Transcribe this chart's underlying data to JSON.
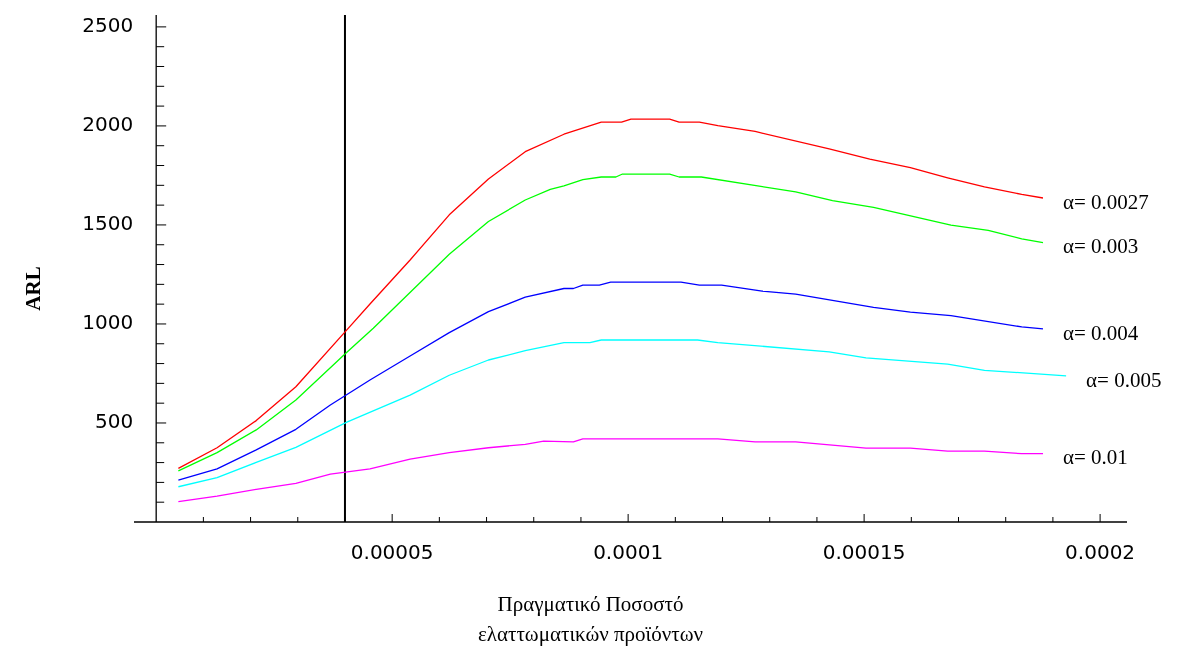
{
  "chart_data": {
    "type": "line",
    "xlabel": "Πραγματικό Ποσοστό\nελαττωματικών προϊόντων",
    "ylabel": "ARL",
    "xlim": [
      -4.7e-06,
      0.0002057
    ],
    "ylim": [
      0,
      2560
    ],
    "xticks": [
      {
        "value": 1e-05,
        "label": null
      },
      {
        "value": 2e-05,
        "label": null
      },
      {
        "value": 3e-05,
        "label": null
      },
      {
        "value": 4e-05,
        "label": null
      },
      {
        "value": 5e-05,
        "label": "0.00005"
      },
      {
        "value": 6e-05,
        "label": null
      },
      {
        "value": 7e-05,
        "label": null
      },
      {
        "value": 8e-05,
        "label": null
      },
      {
        "value": 9e-05,
        "label": null
      },
      {
        "value": 0.0001,
        "label": "0.0001"
      },
      {
        "value": 0.00011,
        "label": null
      },
      {
        "value": 0.00012,
        "label": null
      },
      {
        "value": 0.00013,
        "label": null
      },
      {
        "value": 0.00014,
        "label": null
      },
      {
        "value": 0.00015,
        "label": "0.00015"
      },
      {
        "value": 0.00016,
        "label": null
      },
      {
        "value": 0.00017,
        "label": null
      },
      {
        "value": 0.00018,
        "label": null
      },
      {
        "value": 0.00019,
        "label": null
      },
      {
        "value": 0.0002,
        "label": "0.0002"
      }
    ],
    "ref_lines": [
      {
        "axis": "x",
        "value": 4e-05,
        "color": "#000000"
      }
    ],
    "yticks": [
      {
        "value": 100,
        "label": null
      },
      {
        "value": 200,
        "label": null
      },
      {
        "value": 300,
        "label": null
      },
      {
        "value": 400,
        "label": null
      },
      500,
      {
        "value": 600,
        "label": null
      },
      {
        "value": 700,
        "label": null
      },
      {
        "value": 800,
        "label": null
      },
      {
        "value": 900,
        "label": null
      },
      1000,
      {
        "value": 1100,
        "label": null
      },
      {
        "value": 1200,
        "label": null
      },
      {
        "value": 1300,
        "label": null
      },
      {
        "value": 1400,
        "label": null
      },
      1500,
      {
        "value": 1600,
        "label": null
      },
      {
        "value": 1700,
        "label": null
      },
      {
        "value": 1800,
        "label": null
      },
      {
        "value": 1900,
        "label": null
      },
      2000,
      {
        "value": 2100,
        "label": null
      },
      {
        "value": 2200,
        "label": null
      },
      {
        "value": 2300,
        "label": null
      },
      {
        "value": 2400,
        "label": null
      },
      2500
    ],
    "series": [
      {
        "name": "α= 0.0027",
        "color": "#ff0000",
        "x": [
          4.7e-06,
          1.29e-05,
          2.12e-05,
          2.96e-05,
          4.04e-05,
          4.53e-05,
          5.38e-05,
          6.21e-05,
          7.04e-05,
          7.82e-05,
          8.64e-05,
          9.43e-05,
          9.86e-05,
          0.0001006,
          0.0001088,
          0.0001108,
          0.0001151,
          0.000119,
          0.0001269,
          0.0001426,
          0.0001512,
          0.0001598,
          0.0001677,
          0.0001755,
          0.0001834,
          0.0001879
        ],
        "values": [
          271,
          375,
          512,
          683,
          970,
          1101,
          1323,
          1551,
          1732,
          1870,
          1958,
          2019,
          2019,
          2034,
          2034,
          2019,
          2019,
          2001,
          1972,
          1884,
          1832,
          1789,
          1738,
          1692,
          1654,
          1636
        ]
      },
      {
        "name": "α= 0.003",
        "color": "#00ff00",
        "x": [
          4.7e-06,
          1.29e-05,
          2.12e-05,
          2.96e-05,
          4.04e-05,
          4.6e-05,
          6.21e-05,
          7.04e-05,
          7.82e-05,
          8.35e-05,
          8.64e-05,
          9.04e-05,
          9.43e-05,
          9.74e-05,
          9.88e-05,
          0.0001088,
          0.0001108,
          0.0001155,
          0.0001355,
          0.0001433,
          0.000152,
          0.0001684,
          0.0001763,
          0.0001834,
          0.0001879
        ],
        "values": [
          258,
          350,
          465,
          616,
          857,
          978,
          1352,
          1517,
          1626,
          1680,
          1697,
          1729,
          1742,
          1742,
          1757,
          1757,
          1742,
          1742,
          1667,
          1623,
          1589,
          1499,
          1473,
          1430,
          1411
        ]
      },
      {
        "name": "α= 0.004",
        "color": "#0000ff",
        "x": [
          4.7e-06,
          1.29e-05,
          2.12e-05,
          2.96e-05,
          3.69e-05,
          4.53e-05,
          5.38e-05,
          6.21e-05,
          7.04e-05,
          7.82e-05,
          8.64e-05,
          8.84e-05,
          9.04e-05,
          9.39e-05,
          9.63e-05,
          0.0001112,
          0.0001151,
          0.0001198,
          0.0001284,
          0.0001355,
          0.000152,
          0.0001598,
          0.0001684,
          0.0001834,
          0.0001879
        ],
        "values": [
          212,
          268,
          364,
          468,
          591,
          717,
          838,
          956,
          1062,
          1135,
          1179,
          1179,
          1196,
          1196,
          1211,
          1211,
          1196,
          1196,
          1166,
          1151,
          1084,
          1060,
          1042,
          985,
          975
        ]
      },
      {
        "name": "α= 0.005",
        "color": "#00ffff",
        "x": [
          4.7e-06,
          1.29e-05,
          2.12e-05,
          2.96e-05,
          4.04e-05,
          5.38e-05,
          6.21e-05,
          7.04e-05,
          7.82e-05,
          8.64e-05,
          9.19e-05,
          9.43e-05,
          0.0001147,
          0.000119,
          0.0001426,
          0.0001504,
          0.0001677,
          0.0001755,
          0.0001928
        ],
        "values": [
          178,
          224,
          301,
          377,
          504,
          641,
          741,
          818,
          865,
          906,
          906,
          919,
          919,
          906,
          859,
          829,
          797,
          766,
          738
        ]
      },
      {
        "name": "α= 0.01",
        "color": "#ff00ff",
        "x": [
          4.7e-06,
          1.29e-05,
          2.12e-05,
          2.96e-05,
          3.69e-05,
          4.53e-05,
          5.38e-05,
          6.21e-05,
          7.04e-05,
          7.82e-05,
          8.21e-05,
          8.84e-05,
          9.04e-05,
          0.000119,
          0.0001269,
          0.0001355,
          0.0001504,
          0.0001598,
          0.0001677,
          0.0001755,
          0.0001834,
          0.0001879
        ],
        "values": [
          103,
          131,
          165,
          195,
          242,
          268,
          317,
          350,
          375,
          392,
          408,
          405,
          420,
          420,
          405,
          405,
          373,
          373,
          358,
          358,
          345,
          345
        ]
      }
    ]
  }
}
